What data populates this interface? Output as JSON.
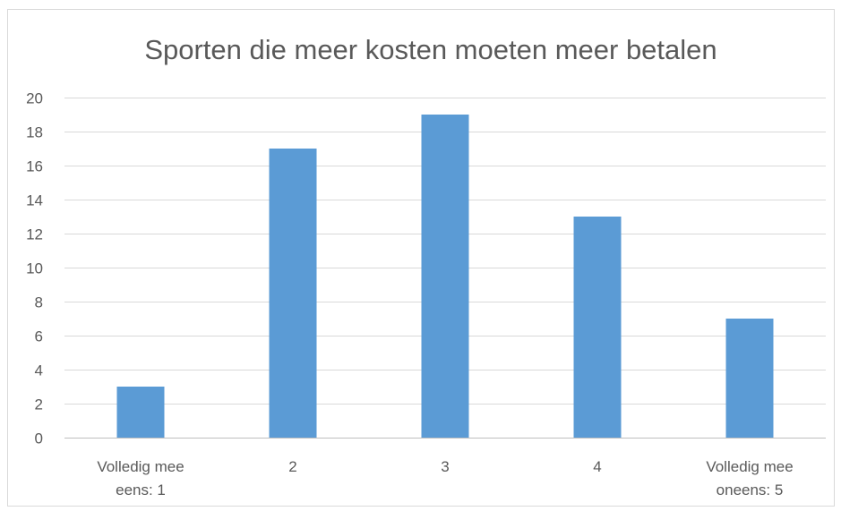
{
  "chart_data": {
    "type": "bar",
    "title": "Sporten die meer kosten moeten meer betalen",
    "xlabel": "",
    "ylabel": "",
    "categories": [
      [
        "Volledig mee",
        "eens: 1"
      ],
      [
        "2"
      ],
      [
        "3"
      ],
      [
        "4"
      ],
      [
        "Volledig mee",
        "oneens: 5"
      ]
    ],
    "values": [
      3,
      17,
      19,
      13,
      7
    ],
    "ylim": [
      0,
      20
    ],
    "yticks": [
      0,
      2,
      4,
      6,
      8,
      10,
      12,
      14,
      16,
      18,
      20
    ],
    "grid": true,
    "legend": "none",
    "bar_color": "#5b9bd5"
  }
}
